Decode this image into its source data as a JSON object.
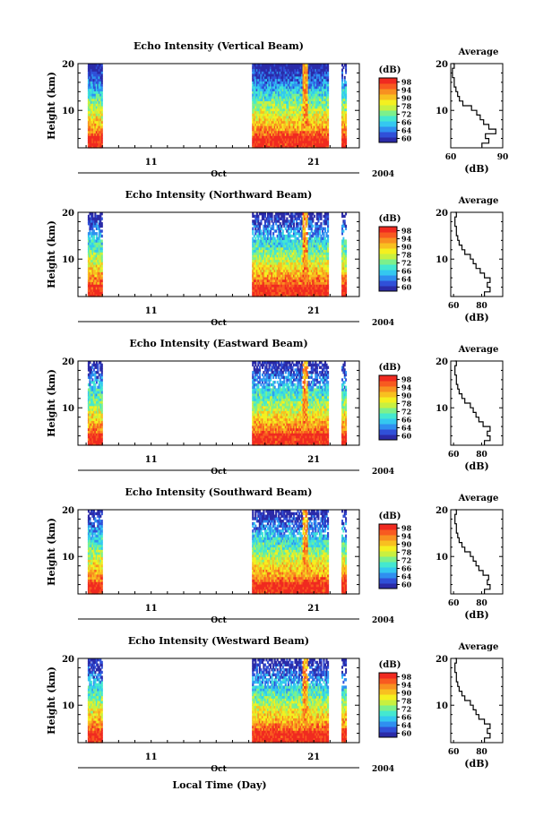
{
  "figure": {
    "bottom_xlabel": "Local Time (Day)"
  },
  "colorbar": {
    "unit": "(dB)",
    "ticks": [
      "50",
      "54",
      "58",
      "62",
      "66",
      "70",
      "74",
      "78",
      "82",
      "86",
      "90",
      "94",
      "98"
    ],
    "visible_labels": [
      "98",
      "94",
      "90",
      "78",
      "72",
      "66",
      "64",
      "60"
    ],
    "colors": [
      "#2b2ba8",
      "#3050d8",
      "#2f8ff0",
      "#34c8f0",
      "#44e8d0",
      "#7cf08c",
      "#c8f040",
      "#f4f020",
      "#f8c020",
      "#f89020",
      "#f85a20",
      "#f02a20"
    ]
  },
  "chart_data": [
    {
      "type": "heatmap",
      "title": "Echo Intensity (Vertical Beam)",
      "ylabel": "Height (km)",
      "ylim": [
        2,
        20
      ],
      "y_ticks": [
        "10",
        "20"
      ],
      "x_ticks": [
        "11",
        "21"
      ],
      "x_range_days": [
        6.5,
        23.8
      ],
      "month_label": "Oct",
      "year_label": "2004",
      "data_periods_day": [
        [
          7.1,
          8.0
        ],
        [
          17.2,
          21.9
        ],
        [
          22.7,
          23.0
        ]
      ],
      "average_profile": {
        "title": "Average",
        "xlabel": "(dB)",
        "x_ticks": [
          "60",
          "90"
        ],
        "xlim": [
          60,
          90
        ],
        "y_ticks": [
          "10",
          "20"
        ],
        "height_km": [
          2,
          3,
          4,
          5,
          6,
          7,
          8,
          9,
          10,
          11,
          12,
          13,
          14,
          15,
          16,
          17,
          18,
          19,
          20
        ],
        "db": [
          78,
          82,
          80,
          86,
          82,
          79,
          77,
          75,
          72,
          67,
          65,
          64,
          63,
          62,
          62,
          61,
          61,
          62,
          61
        ]
      }
    },
    {
      "type": "heatmap",
      "title": "Echo Intensity (Northward Beam)",
      "ylabel": "Height (km)",
      "ylim": [
        2,
        20
      ],
      "y_ticks": [
        "10",
        "20"
      ],
      "x_ticks": [
        "11",
        "21"
      ],
      "x_range_days": [
        6.5,
        23.8
      ],
      "month_label": "Oct",
      "year_label": "2004",
      "data_periods_day": [
        [
          7.1,
          8.0
        ],
        [
          17.2,
          21.9
        ],
        [
          22.7,
          23.0
        ]
      ],
      "average_profile": {
        "title": "Average",
        "xlabel": "(dB)",
        "x_ticks": [
          "60",
          "80"
        ],
        "xlim": [
          58,
          95
        ],
        "y_ticks": [
          "10",
          "20"
        ],
        "height_km": [
          2,
          3,
          4,
          5,
          6,
          7,
          8,
          9,
          10,
          11,
          12,
          13,
          14,
          15,
          16,
          17,
          18,
          19,
          20
        ],
        "db": [
          82,
          86,
          84,
          86,
          82,
          79,
          76,
          74,
          72,
          68,
          66,
          64,
          63,
          62,
          62,
          61,
          61,
          62,
          61
        ]
      }
    },
    {
      "type": "heatmap",
      "title": "Echo Intensity (Eastward Beam)",
      "ylabel": "Height (km)",
      "ylim": [
        2,
        20
      ],
      "y_ticks": [
        "10",
        "20"
      ],
      "x_ticks": [
        "11",
        "21"
      ],
      "x_range_days": [
        6.5,
        23.8
      ],
      "month_label": "Oct",
      "year_label": "2004",
      "data_periods_day": [
        [
          7.1,
          8.0
        ],
        [
          17.2,
          21.9
        ],
        [
          22.7,
          23.0
        ]
      ],
      "average_profile": {
        "title": "Average",
        "xlabel": "(dB)",
        "x_ticks": [
          "60",
          "80"
        ],
        "xlim": [
          58,
          95
        ],
        "y_ticks": [
          "10",
          "20"
        ],
        "height_km": [
          2,
          3,
          4,
          5,
          6,
          7,
          8,
          9,
          10,
          11,
          12,
          13,
          14,
          15,
          16,
          17,
          18,
          19,
          20
        ],
        "db": [
          82,
          86,
          84,
          86,
          81,
          78,
          76,
          74,
          72,
          68,
          66,
          64,
          63,
          62,
          62,
          61,
          61,
          62,
          61
        ]
      }
    },
    {
      "type": "heatmap",
      "title": "Echo Intensity (Southward Beam)",
      "ylabel": "Height (km)",
      "ylim": [
        2,
        20
      ],
      "y_ticks": [
        "10",
        "20"
      ],
      "x_ticks": [
        "11",
        "21"
      ],
      "x_range_days": [
        6.5,
        23.8
      ],
      "month_label": "Oct",
      "year_label": "2004",
      "data_periods_day": [
        [
          7.1,
          8.0
        ],
        [
          17.2,
          21.9
        ],
        [
          22.7,
          23.0
        ]
      ],
      "average_profile": {
        "title": "Average",
        "xlabel": "(dB)",
        "x_ticks": [
          "60",
          "80"
        ],
        "xlim": [
          58,
          95
        ],
        "y_ticks": [
          "10",
          "20"
        ],
        "height_km": [
          2,
          3,
          4,
          5,
          6,
          7,
          8,
          9,
          10,
          11,
          12,
          13,
          14,
          15,
          16,
          17,
          18,
          19,
          20
        ],
        "db": [
          82,
          86,
          84,
          85,
          81,
          78,
          76,
          74,
          72,
          68,
          66,
          64,
          63,
          62,
          62,
          61,
          61,
          62,
          61
        ]
      }
    },
    {
      "type": "heatmap",
      "title": "Echo Intensity (Westward Beam)",
      "ylabel": "Height (km)",
      "ylim": [
        2,
        20
      ],
      "y_ticks": [
        "10",
        "20"
      ],
      "x_ticks": [
        "11",
        "21"
      ],
      "x_range_days": [
        6.5,
        23.8
      ],
      "month_label": "Oct",
      "year_label": "2004",
      "data_periods_day": [
        [
          7.1,
          8.0
        ],
        [
          17.2,
          21.9
        ],
        [
          22.7,
          23.0
        ]
      ],
      "average_profile": {
        "title": "Average",
        "xlabel": "(dB)",
        "x_ticks": [
          "60",
          "80"
        ],
        "xlim": [
          58,
          95
        ],
        "y_ticks": [
          "10",
          "20"
        ],
        "height_km": [
          2,
          3,
          4,
          5,
          6,
          7,
          8,
          9,
          10,
          11,
          12,
          13,
          14,
          15,
          16,
          17,
          18,
          19,
          20
        ],
        "db": [
          82,
          86,
          84,
          86,
          82,
          78,
          76,
          74,
          72,
          68,
          66,
          64,
          63,
          62,
          62,
          61,
          61,
          62,
          61
        ]
      }
    }
  ]
}
